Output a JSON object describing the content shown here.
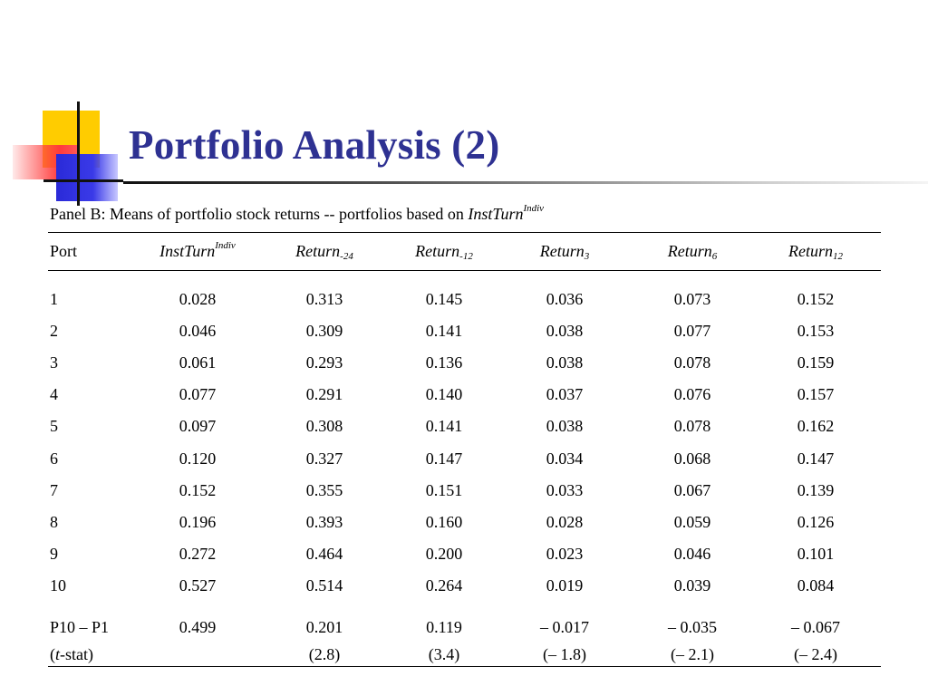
{
  "slide": {
    "title": "Portfolio Analysis (2)"
  },
  "panel": {
    "caption_text": "Panel B: Means of portfolio stock returns -- portfolios based on ",
    "caption_var": "InstTurn",
    "caption_sup": "Indiv"
  },
  "table": {
    "headers": {
      "port": "Port",
      "instturn": "InstTurn",
      "instturn_sup": "Indiv",
      "r1": "Return",
      "r1_sub": "-24",
      "r2": "Return",
      "r2_sub": "-12",
      "r3": "Return",
      "r3_sub": "3",
      "r4": "Return",
      "r4_sub": "6",
      "r5": "Return",
      "r5_sub": "12"
    },
    "rows": [
      [
        "1",
        "0.028",
        "0.313",
        "0.145",
        "0.036",
        "0.073",
        "0.152"
      ],
      [
        "2",
        "0.046",
        "0.309",
        "0.141",
        "0.038",
        "0.077",
        "0.153"
      ],
      [
        "3",
        "0.061",
        "0.293",
        "0.136",
        "0.038",
        "0.078",
        "0.159"
      ],
      [
        "4",
        "0.077",
        "0.291",
        "0.140",
        "0.037",
        "0.076",
        "0.157"
      ],
      [
        "5",
        "0.097",
        "0.308",
        "0.141",
        "0.038",
        "0.078",
        "0.162"
      ],
      [
        "6",
        "0.120",
        "0.327",
        "0.147",
        "0.034",
        "0.068",
        "0.147"
      ],
      [
        "7",
        "0.152",
        "0.355",
        "0.151",
        "0.033",
        "0.067",
        "0.139"
      ],
      [
        "8",
        "0.196",
        "0.393",
        "0.160",
        "0.028",
        "0.059",
        "0.126"
      ],
      [
        "9",
        "0.272",
        "0.464",
        "0.200",
        "0.023",
        "0.046",
        "0.101"
      ],
      [
        "10",
        "0.527",
        "0.514",
        "0.264",
        "0.019",
        "0.039",
        "0.084"
      ]
    ],
    "diff_row": [
      "P10 – P1",
      "0.499",
      "0.201",
      "0.119",
      "– 0.017",
      "– 0.035",
      "– 0.067"
    ],
    "tstat_row": {
      "label_pre": "(",
      "label_italic": "t",
      "label_post": "-stat)",
      "values": [
        "",
        "(2.8)",
        "(3.4)",
        "(– 1.8)",
        "(– 2.1)",
        "(– 2.4)"
      ]
    }
  }
}
